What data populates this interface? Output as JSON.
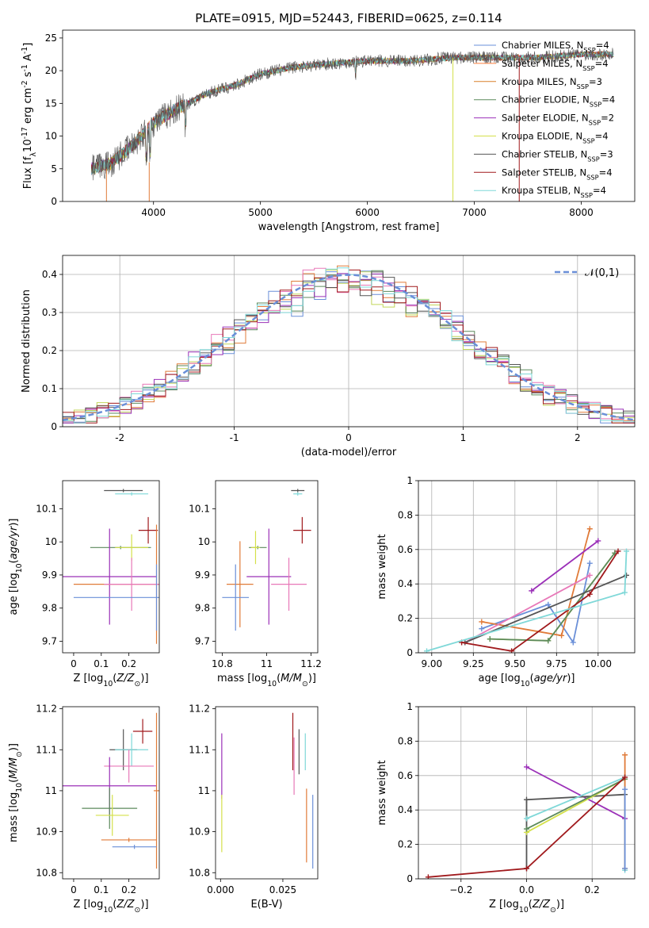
{
  "chart_data": [
    {
      "type": "line",
      "title": "PLATE=0915, MJD=52443, FIBERID=0625, z=0.114",
      "xlabel": "wavelength [Angstrom, rest frame]",
      "ylabel": "Flux [f$_\\lambda$10$^{-17}$ erg cm$^{-2}$ s$^{-1}$ A$^{-1}$]",
      "xlim": [
        3150,
        8500
      ],
      "ylim": [
        0,
        26.2
      ],
      "xticks": [
        4000,
        5000,
        6000,
        7000,
        8000
      ],
      "yticks": [
        0,
        5,
        10,
        15,
        20,
        25
      ],
      "legend_position": "right",
      "data": {
        "wavelength_range": [
          3420,
          8300
        ],
        "flux_anchor_x": [
          3420,
          3600,
          3800,
          4000,
          4200,
          4500,
          4800,
          5000,
          5300,
          5600,
          6000,
          6400,
          6800,
          7200,
          7600,
          8000,
          8300
        ],
        "flux_anchor_y": [
          5.0,
          5.8,
          8.5,
          12.0,
          14.0,
          16.5,
          18.0,
          19.5,
          20.5,
          21.0,
          21.5,
          21.5,
          22.0,
          22.0,
          22.0,
          22.5,
          22.5
        ]
      },
      "series": [
        {
          "name": "Chabrier MILES, N$_{SSP}$=4",
          "color": "#6a8fd8"
        },
        {
          "name": "Salpeter MILES, N$_{SSP}$=4",
          "color": "#ff7f3c"
        },
        {
          "name": "Kroupa MILES, N$_{SSP}$=3",
          "color": "#d9802a"
        },
        {
          "name": "Chabrier ELODIE, N$_{SSP}$=4",
          "color": "#5c8a5c"
        },
        {
          "name": "Salpeter ELODIE, N$_{SSP}$=2",
          "color": "#9b30b8"
        },
        {
          "name": "Kroupa ELODIE, N$_{SSP}$=4",
          "color": "#d4e04a"
        },
        {
          "name": "Chabrier STELIB, N$_{SSP}$=3",
          "color": "#555555"
        },
        {
          "name": "Salpeter STELIB, N$_{SSP}$=4",
          "color": "#a0191c"
        },
        {
          "name": "Kroupa STELIB, N$_{SSP}$=4",
          "color": "#7fd8d8"
        }
      ]
    },
    {
      "type": "histogram",
      "xlabel": "(data-model)/error",
      "ylabel": "Normed distribution",
      "xlim": [
        -2.5,
        2.5
      ],
      "ylim": [
        0,
        0.45
      ],
      "xticks": [
        -2,
        -1,
        0,
        1,
        2
      ],
      "yticks": [
        0.0,
        0.1,
        0.2,
        0.3,
        0.4
      ],
      "grid": true,
      "legend_position": "top-right",
      "legend": "$\\mathcal{N}(0,1)$",
      "gauss_color": "#6a8fd8",
      "bin_width": 0.1,
      "colors": [
        "#6a8fd8",
        "#e07b39",
        "#c2d65a",
        "#5c8a5c",
        "#9b30b8",
        "#e878b8",
        "#555555",
        "#a0191c",
        "#7fd8d8"
      ]
    },
    {
      "type": "scatter",
      "xlabel": "Z [log$_{10}$($Z/Z_\\odot$)]",
      "ylabel": "age  [log$_{10}$($age/yr$)]",
      "xlim": [
        -0.04,
        0.31
      ],
      "ylim": [
        9.665,
        10.185
      ],
      "xticks": [
        0.0,
        0.1,
        0.2
      ],
      "yticks": [
        9.7,
        9.8,
        9.9,
        10.0,
        10.1
      ],
      "points": [
        {
          "x": 0.18,
          "y": 10.155,
          "xerr": 0.07,
          "yerr": 0.005,
          "color": "#555555"
        },
        {
          "x": 0.21,
          "y": 10.145,
          "xerr": 0.06,
          "yerr": 0.005,
          "color": "#7fd8d8"
        },
        {
          "x": 0.27,
          "y": 10.035,
          "xerr": 0.035,
          "yerr": 0.04,
          "color": "#a0191c"
        },
        {
          "x": 0.17,
          "y": 9.983,
          "xerr": 0.11,
          "yerr": 0.005,
          "color": "#5c8a5c"
        },
        {
          "x": 0.21,
          "y": 9.983,
          "xerr": 0.06,
          "yerr": 0.04,
          "color": "#d4e04a"
        },
        {
          "x": 0.13,
          "y": 9.895,
          "xerr": 0.17,
          "yerr": 0.145,
          "color": "#9b30b8"
        },
        {
          "x": 0.3,
          "y": 9.872,
          "xerr": 0.3,
          "yerr": 0.18,
          "color": "#e07b39"
        },
        {
          "x": 0.21,
          "y": 9.872,
          "xerr": 0.1,
          "yerr": 0.08,
          "color": "#e878b8"
        },
        {
          "x": 0.3,
          "y": 9.832,
          "xerr": 0.3,
          "yerr": 0.1,
          "color": "#6a8fd8"
        }
      ]
    },
    {
      "type": "scatter",
      "xlabel": "mass [log$_{10}$($M/M_\\odot$)]",
      "xlim": [
        10.77,
        11.23
      ],
      "ylim": [
        9.665,
        10.185
      ],
      "xticks": [
        10.8,
        11.0,
        11.2
      ],
      "yticks": [
        9.7,
        9.8,
        9.9,
        10.0,
        10.1
      ],
      "points": [
        {
          "x": 11.14,
          "y": 10.155,
          "xerr": 0.03,
          "yerr": 0.005,
          "color": "#555555"
        },
        {
          "x": 11.14,
          "y": 10.145,
          "xerr": 0.02,
          "yerr": 0.005,
          "color": "#7fd8d8"
        },
        {
          "x": 11.16,
          "y": 10.035,
          "xerr": 0.04,
          "yerr": 0.04,
          "color": "#a0191c"
        },
        {
          "x": 10.96,
          "y": 9.983,
          "xerr": 0.04,
          "yerr": 0.005,
          "color": "#5c8a5c"
        },
        {
          "x": 10.95,
          "y": 9.983,
          "xerr": 0.02,
          "yerr": 0.05,
          "color": "#d4e04a"
        },
        {
          "x": 11.01,
          "y": 9.895,
          "xerr": 0.1,
          "yerr": 0.145,
          "color": "#9b30b8"
        },
        {
          "x": 10.88,
          "y": 9.872,
          "xerr": 0.06,
          "yerr": 0.13,
          "color": "#e07b39"
        },
        {
          "x": 11.1,
          "y": 9.872,
          "xerr": 0.08,
          "yerr": 0.08,
          "color": "#e878b8"
        },
        {
          "x": 10.86,
          "y": 9.832,
          "xerr": 0.06,
          "yerr": 0.1,
          "color": "#6a8fd8"
        }
      ]
    },
    {
      "type": "line",
      "xlabel": "age  [log$_{10}$($age/yr$)]",
      "ylabel": "mass weight",
      "xlim": [
        8.92,
        10.22
      ],
      "ylim": [
        0.0,
        1.0
      ],
      "xticks": [
        9.0,
        9.25,
        9.5,
        9.75,
        10.0
      ],
      "xtick_labels": [
        "9.00",
        "9.25",
        "9.50",
        "9.75",
        "10.00"
      ],
      "yticks": [
        0.0,
        0.2,
        0.4,
        0.6,
        0.8,
        1.0
      ],
      "grid": true,
      "series": [
        {
          "color": "#6a8fd8",
          "x": [
            9.3,
            9.7,
            9.85,
            9.95
          ],
          "y": [
            0.14,
            0.28,
            0.06,
            0.52
          ]
        },
        {
          "color": "#e07b39",
          "x": [
            9.3,
            9.78,
            9.95
          ],
          "y": [
            0.18,
            0.1,
            0.72
          ]
        },
        {
          "color": "#d4e04a",
          "x": [
            9.35,
            9.7,
            10.1
          ],
          "y": [
            0.08,
            0.07,
            0.58
          ]
        },
        {
          "color": "#5c8a5c",
          "x": [
            9.35,
            9.7,
            10.1
          ],
          "y": [
            0.08,
            0.07,
            0.58
          ]
        },
        {
          "color": "#9b30b8",
          "x": [
            9.6,
            10.0
          ],
          "y": [
            0.36,
            0.65
          ]
        },
        {
          "color": "#e878b8",
          "x": [
            9.2,
            9.95
          ],
          "y": [
            0.06,
            0.45
          ]
        },
        {
          "color": "#555555",
          "x": [
            9.2,
            10.17
          ],
          "y": [
            0.06,
            0.45
          ]
        },
        {
          "color": "#a0191c",
          "x": [
            9.18,
            9.48,
            9.95,
            10.12
          ],
          "y": [
            0.06,
            0.01,
            0.34,
            0.59
          ]
        },
        {
          "color": "#7fd8d8",
          "x": [
            8.97,
            10.16,
            10.17
          ],
          "y": [
            0.01,
            0.35,
            0.59
          ]
        }
      ]
    },
    {
      "type": "scatter",
      "xlabel": "Z [log$_{10}$($Z/Z_\\odot$)]",
      "ylabel": "mass [log$_{10}$($M/M_\\odot$)]",
      "xlim": [
        -0.04,
        0.31
      ],
      "ylim": [
        10.785,
        11.205
      ],
      "xticks": [
        0.0,
        0.1,
        0.2
      ],
      "yticks": [
        10.8,
        10.9,
        11.0,
        11.1,
        11.2
      ],
      "points": [
        {
          "x": 0.25,
          "y": 11.145,
          "xerr": 0.035,
          "yerr": 0.03,
          "color": "#a0191c"
        },
        {
          "x": 0.18,
          "y": 11.1,
          "xerr": 0.05,
          "yerr": 0.05,
          "color": "#555555"
        },
        {
          "x": 0.21,
          "y": 11.1,
          "xerr": 0.06,
          "yerr": 0.04,
          "color": "#7fd8d8"
        },
        {
          "x": 0.2,
          "y": 11.06,
          "xerr": 0.09,
          "yerr": 0.04,
          "color": "#e878b8"
        },
        {
          "x": 0.13,
          "y": 11.012,
          "xerr": 0.17,
          "yerr": 0.07,
          "color": "#9b30b8"
        },
        {
          "x": 0.3,
          "y": 11.0,
          "xerr": 0.01,
          "yerr": 0.19,
          "color": "#e07b39"
        },
        {
          "x": 0.13,
          "y": 10.957,
          "xerr": 0.1,
          "yerr": 0.05,
          "color": "#5c8a5c"
        },
        {
          "x": 0.14,
          "y": 10.94,
          "xerr": 0.06,
          "yerr": 0.05,
          "color": "#d4e04a"
        },
        {
          "x": 0.2,
          "y": 10.88,
          "xerr": 0.1,
          "yerr": 0.005,
          "color": "#e07b39"
        },
        {
          "x": 0.22,
          "y": 10.863,
          "xerr": 0.08,
          "yerr": 0.005,
          "color": "#6a8fd8"
        }
      ]
    },
    {
      "type": "scatter",
      "xlabel": "E(B-V)",
      "xlim": [
        -0.002,
        0.039
      ],
      "ylim": [
        10.785,
        11.205
      ],
      "xticks": [
        0.0,
        0.025
      ],
      "xtick_labels": [
        "0.000",
        "0.025"
      ],
      "yticks": [
        10.8,
        10.9,
        11.0,
        11.1,
        11.2
      ],
      "points": [
        {
          "x": 0.029,
          "y": 11.12,
          "yerr": 0.07,
          "color": "#a0191c"
        },
        {
          "x": 0.0315,
          "y": 11.095,
          "yerr": 0.055,
          "color": "#555555"
        },
        {
          "x": 0.034,
          "y": 11.095,
          "yerr": 0.045,
          "color": "#7fd8d8"
        },
        {
          "x": 0.0295,
          "y": 11.06,
          "yerr": 0.07,
          "color": "#e878b8"
        },
        {
          "x": 0.0005,
          "y": 11.06,
          "yerr": 0.08,
          "color": "#9b30b8"
        },
        {
          "x": 0.0005,
          "y": 10.92,
          "yerr": 0.07,
          "color": "#d4e04a"
        },
        {
          "x": 0.0345,
          "y": 10.915,
          "yerr": 0.09,
          "color": "#e07b39"
        },
        {
          "x": 0.037,
          "y": 10.9,
          "yerr": 0.09,
          "color": "#6a8fd8"
        }
      ]
    },
    {
      "type": "line",
      "xlabel": "Z [log$_{10}$($Z/Z_\\odot$)]",
      "ylabel": "mass weight",
      "xlim": [
        -0.33,
        0.33
      ],
      "ylim": [
        0.0,
        1.0
      ],
      "xticks": [
        -0.2,
        0.0,
        0.2
      ],
      "xtick_labels": [
        "−0.2",
        "0.0",
        "0.2"
      ],
      "yticks": [
        0.0,
        0.2,
        0.4,
        0.6,
        0.8,
        1.0
      ],
      "grid": true,
      "series": [
        {
          "color": "#9b30b8",
          "x": [
            0.0,
            0.3
          ],
          "y": [
            0.65,
            0.35
          ]
        },
        {
          "color": "#555555",
          "x": [
            0.0,
            0.0,
            0.3
          ],
          "y": [
            0.06,
            0.46,
            0.49
          ]
        },
        {
          "color": "#7fd8d8",
          "x": [
            0.0,
            0.3,
            0.3
          ],
          "y": [
            0.35,
            0.59,
            0.05
          ]
        },
        {
          "color": "#d4e04a",
          "x": [
            0.0,
            0.3
          ],
          "y": [
            0.27,
            0.58
          ]
        },
        {
          "color": "#5c8a5c",
          "x": [
            0.0,
            0.3
          ],
          "y": [
            0.29,
            0.58
          ]
        },
        {
          "color": "#e07b39",
          "x": [
            0.3,
            0.3
          ],
          "y": [
            0.72,
            0.06
          ]
        },
        {
          "color": "#6a8fd8",
          "x": [
            0.3,
            0.3
          ],
          "y": [
            0.52,
            0.06
          ]
        },
        {
          "color": "#a0191c",
          "x": [
            -0.3,
            0.0,
            0.3
          ],
          "y": [
            0.01,
            0.06,
            0.59
          ]
        }
      ]
    }
  ]
}
